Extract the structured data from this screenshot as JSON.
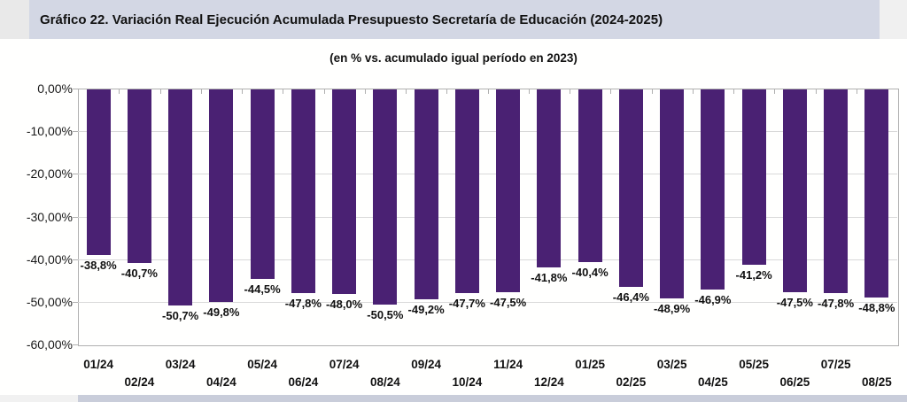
{
  "header": {
    "title": "Gráfico 22. Variación Real Ejecución Acumulada Presupuesto Secretaría de Educación (2024-2025)"
  },
  "chart_data": {
    "type": "bar",
    "title": "Gráfico 22. Variación Real Ejecución Acumulada Presupuesto Secretaría de Educación (2024-2025)",
    "subtitle": "(en % vs. acumulado igual período en 2023)",
    "categories": [
      "01/24",
      "02/24",
      "03/24",
      "04/24",
      "05/24",
      "06/24",
      "07/24",
      "08/24",
      "09/24",
      "10/24",
      "11/24",
      "12/24",
      "01/25",
      "02/25",
      "03/25",
      "04/25",
      "05/25",
      "06/25",
      "07/25",
      "08/25"
    ],
    "values": [
      -38.8,
      -40.7,
      -50.7,
      -49.8,
      -44.5,
      -47.8,
      -48.0,
      -50.5,
      -49.2,
      -47.7,
      -47.5,
      -41.8,
      -40.4,
      -46.4,
      -48.9,
      -46.9,
      -41.2,
      -47.5,
      -47.8,
      -48.8
    ],
    "value_labels": [
      "-38,8%",
      "-40,7%",
      "-50,7%",
      "-49,8%",
      "-44,5%",
      "-47,8%",
      "-48,0%",
      "-50,5%",
      "-49,2%",
      "-47,7%",
      "-47,5%",
      "-41,8%",
      "-40,4%",
      "-46,4%",
      "-48,9%",
      "-46,9%",
      "-41,2%",
      "-47,5%",
      "-47,8%",
      "-48,8%"
    ],
    "y_ticks": [
      "0,00%",
      "-10,00%",
      "-20,00%",
      "-30,00%",
      "-40,00%",
      "-50,00%",
      "-60,00%"
    ],
    "ylim": [
      -60,
      0
    ],
    "xlabel": "",
    "ylabel": "",
    "grid": true,
    "legend_position": "none",
    "bar_color": "#4a2173",
    "colors": {
      "banner_background": "#d3d7e4",
      "grid_color": "#d9d9d9",
      "axis_color": "#b0b0b0",
      "footer_strip": "#c9cdda",
      "text": "#111111"
    }
  }
}
